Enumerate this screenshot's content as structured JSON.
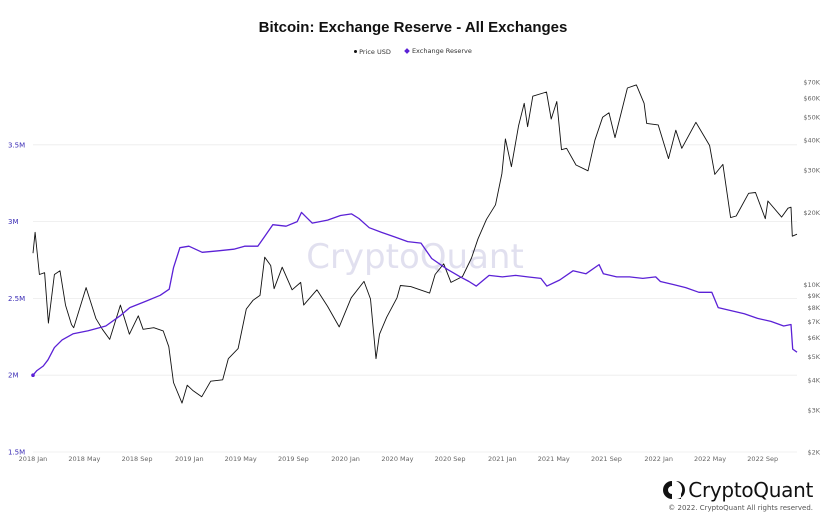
{
  "chart_data": {
    "type": "line",
    "title": "Bitcoin: Exchange Reserve - All Exchanges",
    "legend": {
      "placement": "top-center",
      "entries": [
        {
          "name": "Price USD",
          "color": "#111111",
          "marker": "dot"
        },
        {
          "name": "Exchange Reserve",
          "color": "#5b21d6",
          "marker": "diamond"
        }
      ]
    },
    "grid": true,
    "x_axis": {
      "ticks": [
        "2018 Jan",
        "2018 May",
        "2018 Sep",
        "2019 Jan",
        "2019 May",
        "2019 Sep",
        "2020 Jan",
        "2020 May",
        "2020 Sep",
        "2021 Jan",
        "2021 May",
        "2021 Sep",
        "2022 Jan",
        "2022 May",
        "2022 Sep"
      ],
      "range": [
        "2018-01-01",
        "2022-11-20"
      ]
    },
    "y_axis_left": {
      "label": "",
      "range": [
        1500000,
        4000000
      ],
      "ticks": [
        {
          "value": 1500000,
          "label": "1.5M"
        },
        {
          "value": 2000000,
          "label": "2M"
        },
        {
          "value": 2500000,
          "label": "2.5M"
        },
        {
          "value": 3000000,
          "label": "3M"
        },
        {
          "value": 3500000,
          "label": "3.5M"
        }
      ]
    },
    "y_axis_right": {
      "label": "",
      "scale": "log",
      "range": [
        2000,
        80000
      ],
      "ticks": [
        {
          "value": 2000,
          "label": "$2K"
        },
        {
          "value": 3000,
          "label": "$3K"
        },
        {
          "value": 4000,
          "label": "$4K"
        },
        {
          "value": 5000,
          "label": "$5K"
        },
        {
          "value": 6000,
          "label": "$6K"
        },
        {
          "value": 7000,
          "label": "$7K"
        },
        {
          "value": 8000,
          "label": "$8K"
        },
        {
          "value": 9000,
          "label": "$9K"
        },
        {
          "value": 10000,
          "label": "$10K"
        },
        {
          "value": 20000,
          "label": "$20K"
        },
        {
          "value": 30000,
          "label": "$30K"
        },
        {
          "value": 40000,
          "label": "$40K"
        },
        {
          "value": 50000,
          "label": "$50K"
        },
        {
          "value": 60000,
          "label": "$60K"
        },
        {
          "value": 70000,
          "label": "$70K"
        }
      ]
    },
    "series": [
      {
        "name": "Price USD",
        "axis": "right",
        "color": "#111111",
        "points": [
          [
            "2018-01-01",
            13500
          ],
          [
            "2018-01-06",
            16500
          ],
          [
            "2018-01-16",
            11000
          ],
          [
            "2018-01-28",
            11200
          ],
          [
            "2018-02-06",
            6900
          ],
          [
            "2018-02-20",
            11000
          ],
          [
            "2018-03-05",
            11400
          ],
          [
            "2018-03-18",
            8200
          ],
          [
            "2018-04-01",
            6800
          ],
          [
            "2018-04-06",
            6600
          ],
          [
            "2018-05-05",
            9700
          ],
          [
            "2018-05-28",
            7200
          ],
          [
            "2018-06-12",
            6500
          ],
          [
            "2018-06-29",
            5900
          ],
          [
            "2018-07-24",
            8200
          ],
          [
            "2018-08-14",
            6200
          ],
          [
            "2018-09-04",
            7400
          ],
          [
            "2018-09-15",
            6500
          ],
          [
            "2018-10-10",
            6600
          ],
          [
            "2018-11-01",
            6400
          ],
          [
            "2018-11-14",
            5500
          ],
          [
            "2018-11-25",
            3900
          ],
          [
            "2018-12-15",
            3200
          ],
          [
            "2018-12-27",
            3800
          ],
          [
            "2019-01-10",
            3600
          ],
          [
            "2019-01-30",
            3400
          ],
          [
            "2019-02-20",
            3950
          ],
          [
            "2019-03-20",
            4000
          ],
          [
            "2019-04-02",
            4900
          ],
          [
            "2019-04-25",
            5400
          ],
          [
            "2019-05-14",
            7900
          ],
          [
            "2019-05-30",
            8600
          ],
          [
            "2019-06-15",
            9000
          ],
          [
            "2019-06-26",
            13000
          ],
          [
            "2019-07-10",
            12000
          ],
          [
            "2019-07-18",
            9600
          ],
          [
            "2019-08-06",
            11800
          ],
          [
            "2019-08-29",
            9500
          ],
          [
            "2019-09-18",
            10200
          ],
          [
            "2019-09-25",
            8200
          ],
          [
            "2019-10-26",
            9500
          ],
          [
            "2019-11-20",
            8100
          ],
          [
            "2019-12-17",
            6650
          ],
          [
            "2020-01-14",
            8800
          ],
          [
            "2020-02-13",
            10300
          ],
          [
            "2020-02-28",
            8700
          ],
          [
            "2020-03-12",
            4900
          ],
          [
            "2020-03-20",
            6200
          ],
          [
            "2020-04-06",
            7300
          ],
          [
            "2020-04-30",
            8800
          ],
          [
            "2020-05-08",
            9900
          ],
          [
            "2020-06-01",
            9800
          ],
          [
            "2020-07-15",
            9200
          ],
          [
            "2020-07-28",
            11000
          ],
          [
            "2020-08-17",
            12200
          ],
          [
            "2020-09-03",
            10200
          ],
          [
            "2020-09-30",
            10800
          ],
          [
            "2020-10-21",
            12900
          ],
          [
            "2020-11-05",
            15500
          ],
          [
            "2020-11-25",
            18700
          ],
          [
            "2020-12-16",
            21500
          ],
          [
            "2020-12-31",
            29000
          ],
          [
            "2021-01-08",
            40500
          ],
          [
            "2021-01-22",
            31000
          ],
          [
            "2021-02-08",
            46000
          ],
          [
            "2021-02-21",
            57000
          ],
          [
            "2021-03-01",
            45500
          ],
          [
            "2021-03-13",
            61000
          ],
          [
            "2021-04-14",
            63500
          ],
          [
            "2021-04-25",
            49000
          ],
          [
            "2021-05-08",
            58000
          ],
          [
            "2021-05-19",
            36500
          ],
          [
            "2021-05-31",
            37000
          ],
          [
            "2021-06-22",
            31500
          ],
          [
            "2021-07-20",
            29800
          ],
          [
            "2021-08-05",
            40000
          ],
          [
            "2021-08-23",
            49800
          ],
          [
            "2021-09-07",
            52000
          ],
          [
            "2021-09-21",
            41000
          ],
          [
            "2021-10-20",
            66000
          ],
          [
            "2021-11-10",
            68000
          ],
          [
            "2021-11-28",
            57000
          ],
          [
            "2021-12-04",
            47000
          ],
          [
            "2021-12-31",
            46300
          ],
          [
            "2022-01-24",
            33500
          ],
          [
            "2022-02-10",
            44000
          ],
          [
            "2022-02-24",
            37000
          ],
          [
            "2022-03-29",
            47500
          ],
          [
            "2022-04-30",
            38000
          ],
          [
            "2022-05-12",
            28800
          ],
          [
            "2022-05-31",
            31700
          ],
          [
            "2022-06-18",
            19000
          ],
          [
            "2022-07-01",
            19300
          ],
          [
            "2022-07-30",
            24000
          ],
          [
            "2022-08-15",
            24200
          ],
          [
            "2022-09-07",
            18800
          ],
          [
            "2022-09-13",
            22300
          ],
          [
            "2022-10-15",
            19100
          ],
          [
            "2022-10-30",
            20800
          ],
          [
            "2022-11-06",
            21000
          ],
          [
            "2022-11-09",
            15900
          ],
          [
            "2022-11-20",
            16200
          ]
        ]
      },
      {
        "name": "Exchange Reserve",
        "axis": "left",
        "color": "#5b21d6",
        "points": [
          [
            "2018-01-01",
            2000000
          ],
          [
            "2018-01-10",
            2030000
          ],
          [
            "2018-01-25",
            2060000
          ],
          [
            "2018-02-05",
            2100000
          ],
          [
            "2018-02-20",
            2180000
          ],
          [
            "2018-03-10",
            2230000
          ],
          [
            "2018-04-05",
            2270000
          ],
          [
            "2018-05-10",
            2290000
          ],
          [
            "2018-06-20",
            2320000
          ],
          [
            "2018-07-25",
            2390000
          ],
          [
            "2018-08-15",
            2440000
          ],
          [
            "2018-09-20",
            2480000
          ],
          [
            "2018-10-25",
            2520000
          ],
          [
            "2018-11-15",
            2560000
          ],
          [
            "2018-11-25",
            2700000
          ],
          [
            "2018-12-10",
            2830000
          ],
          [
            "2018-12-31",
            2840000
          ],
          [
            "2019-01-31",
            2800000
          ],
          [
            "2019-03-10",
            2810000
          ],
          [
            "2019-04-15",
            2820000
          ],
          [
            "2019-05-10",
            2840000
          ],
          [
            "2019-06-10",
            2840000
          ],
          [
            "2019-06-25",
            2900000
          ],
          [
            "2019-07-15",
            2980000
          ],
          [
            "2019-08-15",
            2970000
          ],
          [
            "2019-09-10",
            3000000
          ],
          [
            "2019-09-20",
            3060000
          ],
          [
            "2019-10-15",
            2990000
          ],
          [
            "2019-11-20",
            3010000
          ],
          [
            "2019-12-20",
            3040000
          ],
          [
            "2020-01-15",
            3050000
          ],
          [
            "2020-02-01",
            3020000
          ],
          [
            "2020-02-25",
            2960000
          ],
          [
            "2020-03-25",
            2930000
          ],
          [
            "2020-04-25",
            2900000
          ],
          [
            "2020-05-25",
            2870000
          ],
          [
            "2020-06-25",
            2860000
          ],
          [
            "2020-07-20",
            2760000
          ],
          [
            "2020-08-25",
            2690000
          ],
          [
            "2020-09-25",
            2640000
          ],
          [
            "2020-10-15",
            2610000
          ],
          [
            "2020-11-01",
            2580000
          ],
          [
            "2020-12-01",
            2650000
          ],
          [
            "2021-01-01",
            2640000
          ],
          [
            "2021-02-01",
            2650000
          ],
          [
            "2021-03-01",
            2640000
          ],
          [
            "2021-04-01",
            2630000
          ],
          [
            "2021-04-15",
            2580000
          ],
          [
            "2021-05-15",
            2620000
          ],
          [
            "2021-06-15",
            2680000
          ],
          [
            "2021-07-15",
            2660000
          ],
          [
            "2021-08-15",
            2720000
          ],
          [
            "2021-08-25",
            2660000
          ],
          [
            "2021-09-25",
            2640000
          ],
          [
            "2021-10-25",
            2640000
          ],
          [
            "2021-11-25",
            2630000
          ],
          [
            "2021-12-25",
            2640000
          ],
          [
            "2022-01-05",
            2610000
          ],
          [
            "2022-02-05",
            2590000
          ],
          [
            "2022-03-05",
            2570000
          ],
          [
            "2022-04-05",
            2540000
          ],
          [
            "2022-05-05",
            2540000
          ],
          [
            "2022-05-20",
            2440000
          ],
          [
            "2022-06-20",
            2420000
          ],
          [
            "2022-07-20",
            2400000
          ],
          [
            "2022-08-20",
            2370000
          ],
          [
            "2022-09-20",
            2350000
          ],
          [
            "2022-10-20",
            2320000
          ],
          [
            "2022-11-06",
            2330000
          ],
          [
            "2022-11-10",
            2170000
          ],
          [
            "2022-11-20",
            2150000
          ]
        ]
      }
    ]
  },
  "watermark": "CryptoQuant",
  "brand": {
    "logo_icon": "cryptoquant-logo-icon",
    "name": "CryptoQuant",
    "copyright": "© 2022. CryptoQuant All rights reserved."
  }
}
